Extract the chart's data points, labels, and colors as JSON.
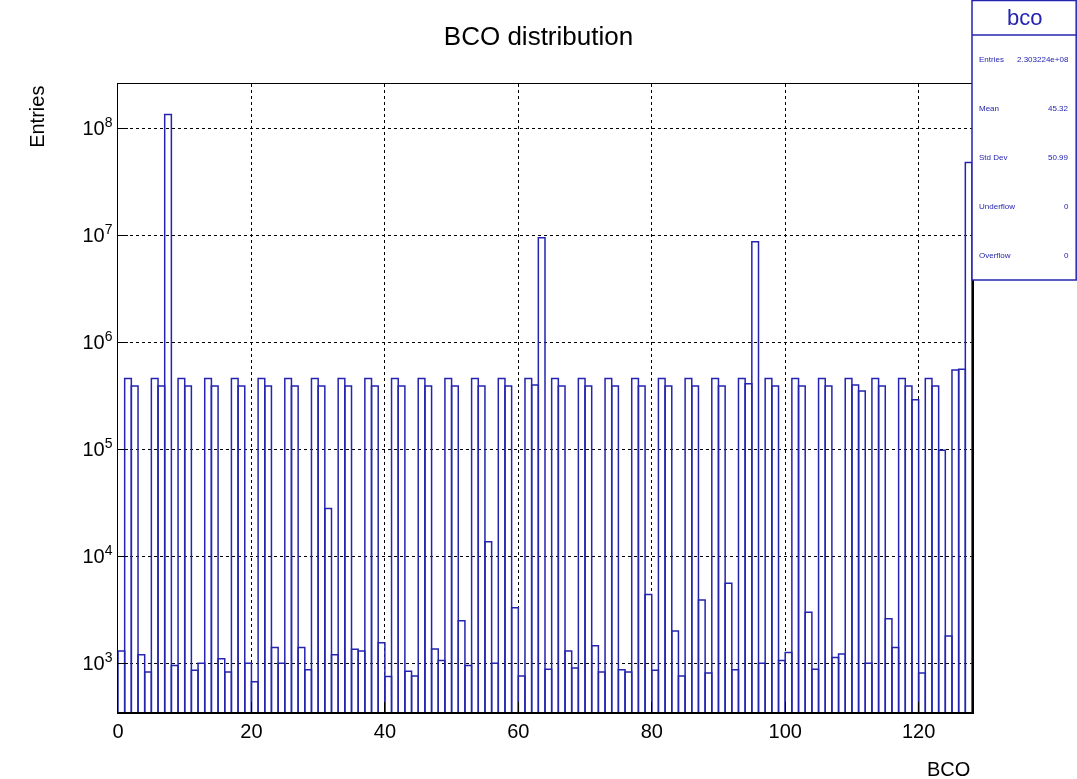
{
  "chart_data": {
    "type": "histogram",
    "title": "BCO distribution",
    "xlabel": "BCO",
    "ylabel": "Entries",
    "color": "#2424b0",
    "bins": [
      0,
      1,
      2,
      3,
      4,
      5,
      6,
      7,
      8,
      9,
      10,
      11,
      12,
      13,
      14,
      15,
      16,
      17,
      18,
      19,
      20,
      21,
      22,
      23,
      24,
      25,
      26,
      27,
      28,
      29,
      30,
      31,
      32,
      33,
      34,
      35,
      36,
      37,
      38,
      39,
      40,
      41,
      42,
      43,
      44,
      45,
      46,
      47,
      48,
      49,
      50,
      51,
      52,
      53,
      54,
      55,
      56,
      57,
      58,
      59,
      60,
      61,
      62,
      63,
      64,
      65,
      66,
      67,
      68,
      69,
      70,
      71,
      72,
      73,
      74,
      75,
      76,
      77,
      78,
      79,
      80,
      81,
      82,
      83,
      84,
      85,
      86,
      87,
      88,
      89,
      90,
      91,
      92,
      93,
      94,
      95,
      96,
      97,
      98,
      99,
      100,
      101,
      102,
      103,
      104,
      105,
      106,
      107,
      108,
      109,
      110,
      111,
      112,
      113,
      114,
      115,
      116,
      117,
      118,
      119,
      120,
      121,
      122,
      123,
      124,
      125,
      126,
      127,
      128
    ],
    "values": [
      1300,
      460000,
      390000,
      1200,
      830,
      460000,
      390000,
      135000000,
      950,
      460000,
      390000,
      860,
      1000,
      460000,
      390000,
      1100,
      830,
      460000,
      390000,
      1000,
      670,
      460000,
      390000,
      1400,
      1000,
      460000,
      390000,
      1400,
      870,
      460000,
      390000,
      28000,
      1200,
      460000,
      390000,
      1350,
      1300,
      460000,
      390000,
      1550,
      750,
      460000,
      390000,
      840,
      760,
      460000,
      390000,
      1360,
      1060,
      460000,
      390000,
      2500,
      950,
      460000,
      390000,
      13700,
      1000,
      460000,
      390000,
      3300,
      760,
      460000,
      400000,
      9500000,
      880,
      460000,
      390000,
      1300,
      900,
      460000,
      390000,
      1460,
      830,
      460000,
      390000,
      870,
      830,
      460000,
      390000,
      4400,
      860,
      460000,
      390000,
      2000,
      760,
      460000,
      390000,
      3900,
      810,
      460000,
      390000,
      5600,
      870,
      460000,
      410000,
      8700000,
      1000,
      460000,
      390000,
      1060,
      1260,
      460000,
      390000,
      3000,
      880,
      460000,
      390000,
      1130,
      1220,
      460000,
      400000,
      350000,
      1000,
      460000,
      390000,
      2600,
      1400,
      460000,
      390000,
      290000,
      810,
      460000,
      390000,
      98000,
      1800,
      550000,
      560000,
      48000000
    ],
    "log": true,
    "grid": true,
    "xlim": [
      0,
      128
    ],
    "xticks": [
      0,
      20,
      40,
      60,
      80,
      100,
      120
    ],
    "ylim": [
      350,
      260000000
    ],
    "yticks": [
      {
        "value": 1000,
        "label": "10$^{3}$"
      },
      {
        "value": 10000,
        "label": "10$^{4}$"
      },
      {
        "value": 100000,
        "label": "10$^{5}$"
      },
      {
        "value": 1000000,
        "label": "10$^{6}$"
      },
      {
        "value": 10000000,
        "label": "10$^{7}$"
      },
      {
        "value": 100000000,
        "label": "10$^{8}$"
      }
    ],
    "annotations": [
      "bco",
      "Entries",
      "2.303224e+08",
      "Mean",
      "45.32",
      "Std Dev",
      "50.99",
      "Underflow",
      "0",
      "Overflow",
      "0"
    ]
  }
}
